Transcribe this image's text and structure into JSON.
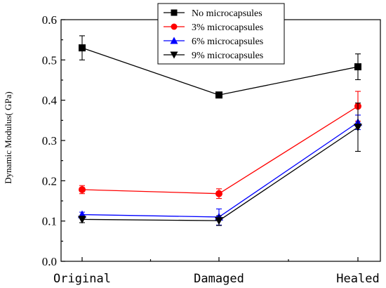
{
  "chart_data": {
    "type": "line",
    "categories": [
      "Original",
      "Damaged",
      "Healed"
    ],
    "ylabel": "Dynamic Modulus(  GPa)",
    "xlabel": "",
    "ylim": [
      0.0,
      0.6
    ],
    "yticks": [
      "0.0",
      "0.1",
      "0.2",
      "0.3",
      "0.4",
      "0.5",
      "0.6"
    ],
    "legend_position": "top-center",
    "series": [
      {
        "name": "No microcapsules",
        "color": "#000000",
        "marker": "square",
        "values": [
          0.53,
          0.413,
          0.483
        ],
        "errors": [
          0.03,
          0.005,
          0.032
        ]
      },
      {
        "name": "3% microcapsules",
        "color": "#ff0000",
        "marker": "circle",
        "values": [
          0.178,
          0.168,
          0.385
        ],
        "errors": [
          0.01,
          0.012,
          0.037
        ]
      },
      {
        "name": "6% microcapsules",
        "color": "#0000ff",
        "marker": "triangle-up",
        "values": [
          0.116,
          0.11,
          0.345
        ],
        "errors": [
          0.006,
          0.02,
          0.018
        ]
      },
      {
        "name": "9% microcapsules",
        "color": "#000000",
        "marker": "triangle-down",
        "values": [
          0.104,
          0.101,
          0.333
        ],
        "errors": [
          0.008,
          0.012,
          0.06
        ]
      }
    ]
  }
}
